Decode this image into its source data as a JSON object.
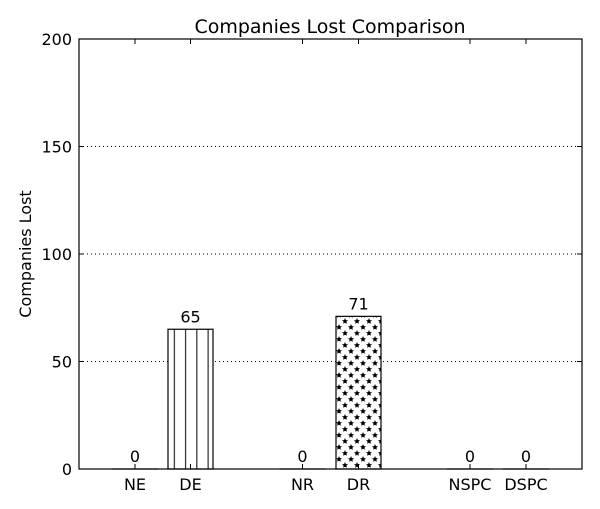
{
  "chart_data": {
    "type": "bar",
    "title": "Companies Lost Comparison",
    "xlabel": "",
    "ylabel": "Companies Lost",
    "ylim": [
      0,
      200
    ],
    "yticks": [
      0,
      50,
      100,
      150,
      200
    ],
    "grid": "y-dotted",
    "categories": [
      "NE",
      "DE",
      "NR",
      "DR",
      "NSPC",
      "DSPC"
    ],
    "values": [
      0,
      65,
      0,
      71,
      0,
      0
    ],
    "data_labels": [
      "0",
      "65",
      "0",
      "71",
      "0",
      "0"
    ],
    "patterns": [
      "none",
      "vertical-lines",
      "none",
      "stars",
      "none",
      "none"
    ]
  }
}
